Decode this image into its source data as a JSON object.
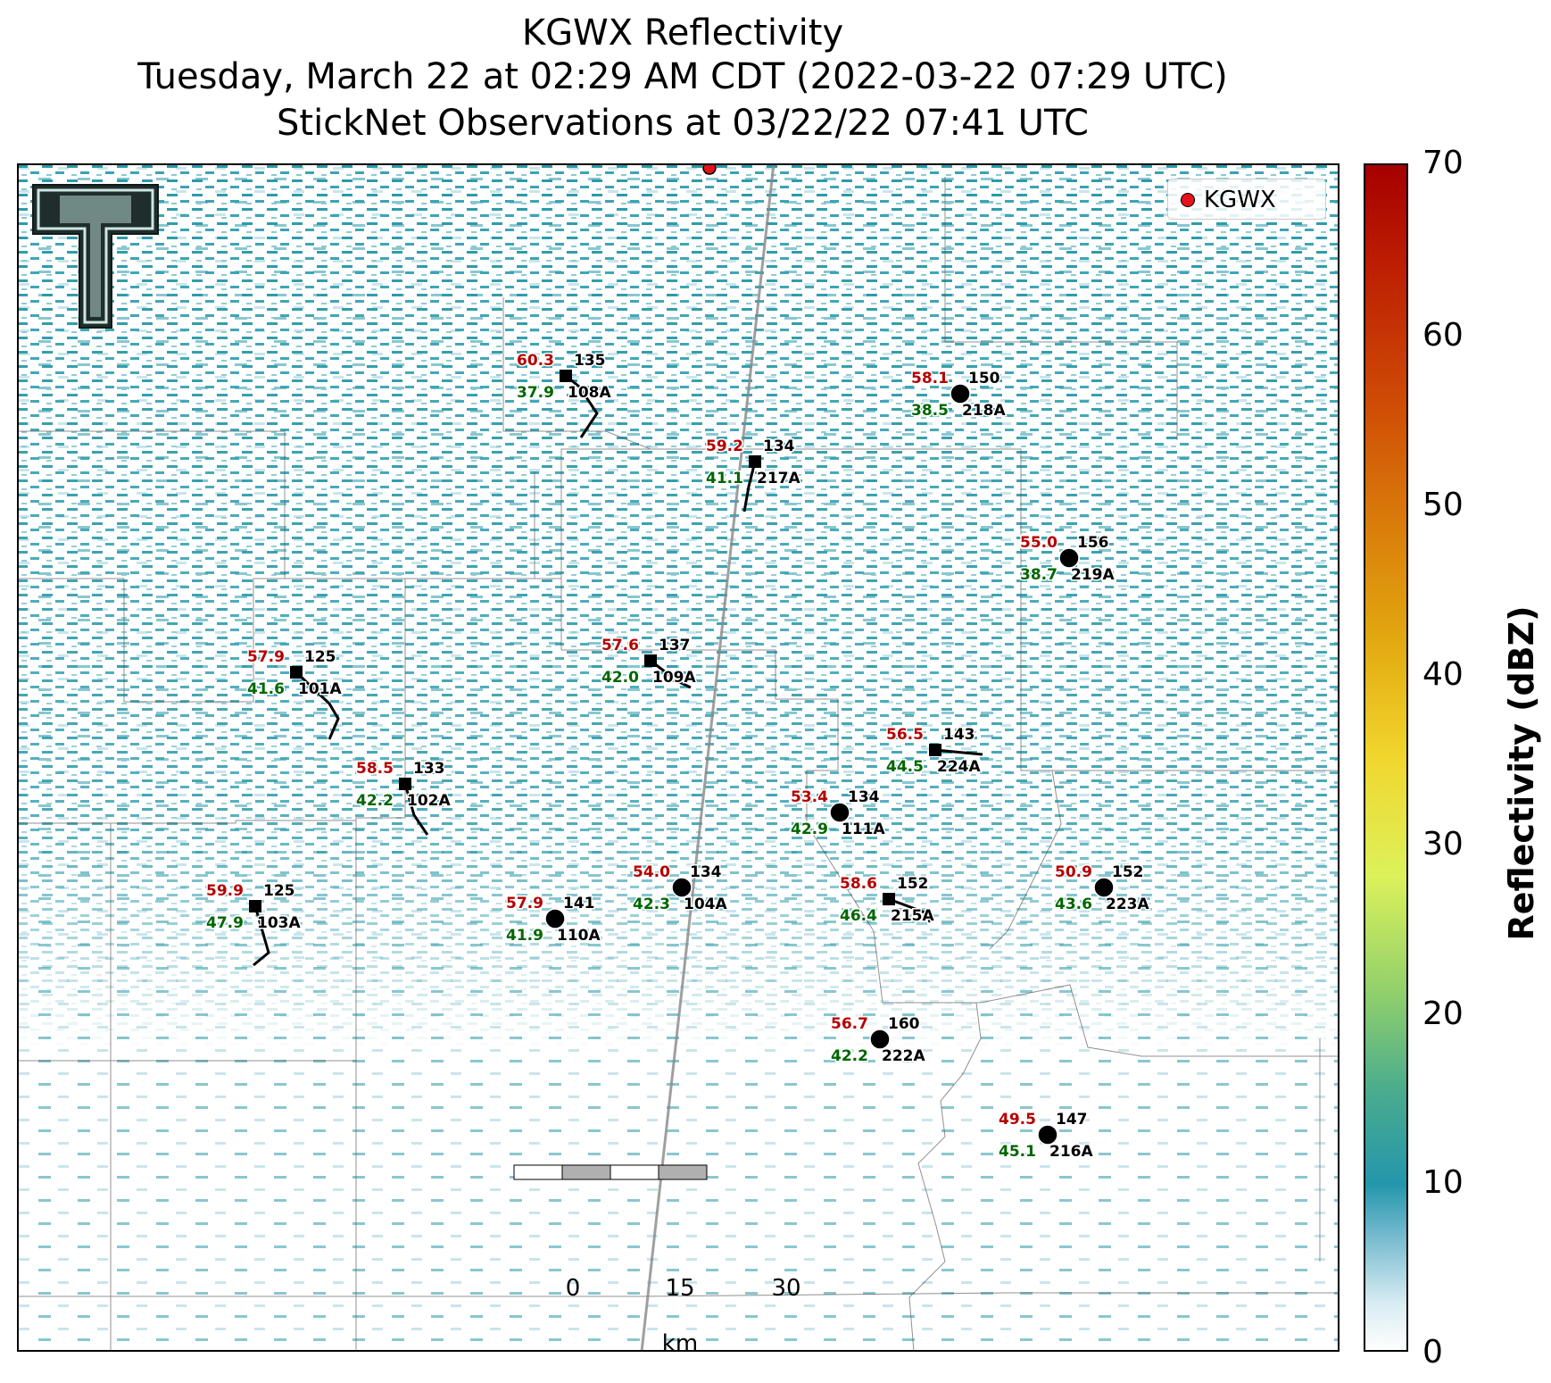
{
  "title": {
    "line1": "KGWX Reflectivity",
    "line2": "Tuesday, March 22 at 02:29 AM CDT (2022-03-22 07:29 UTC)",
    "line3": "StickNet Observations at 03/22/22 07:41 UTC"
  },
  "legend": {
    "label": "KGWX",
    "marker_color": "#e4141c"
  },
  "colorbar": {
    "label": "Reflectivity (dBZ)",
    "ticks": [
      "0",
      "10",
      "20",
      "30",
      "40",
      "50",
      "60",
      "70"
    ]
  },
  "scalebar": {
    "ticks": [
      "0",
      "15",
      "30"
    ],
    "unit": "km"
  },
  "stations": [
    {
      "id": "108A",
      "temp": "60.3",
      "dew": "37.9",
      "value": "135",
      "marker": "square"
    },
    {
      "id": "217A",
      "temp": "59.2",
      "dew": "41.1",
      "value": "134",
      "marker": "square"
    },
    {
      "id": "218A",
      "temp": "58.1",
      "dew": "38.5",
      "value": "150",
      "marker": "circle"
    },
    {
      "id": "219A",
      "temp": "55.0",
      "dew": "38.7",
      "value": "156",
      "marker": "circle"
    },
    {
      "id": "101A",
      "temp": "57.9",
      "dew": "41.6",
      "value": "125",
      "marker": "square"
    },
    {
      "id": "109A",
      "temp": "57.6",
      "dew": "42.0",
      "value": "137",
      "marker": "square"
    },
    {
      "id": "224A",
      "temp": "56.5",
      "dew": "44.5",
      "value": "143",
      "marker": "square"
    },
    {
      "id": "102A",
      "temp": "58.5",
      "dew": "42.2",
      "value": "133",
      "marker": "square"
    },
    {
      "id": "111A",
      "temp": "53.4",
      "dew": "42.9",
      "value": "134",
      "marker": "circle"
    },
    {
      "id": "103A",
      "temp": "59.9",
      "dew": "47.9",
      "value": "125",
      "marker": "square"
    },
    {
      "id": "110A",
      "temp": "57.9",
      "dew": "41.9",
      "value": "141",
      "marker": "circle"
    },
    {
      "id": "104A",
      "temp": "54.0",
      "dew": "42.3",
      "value": "134",
      "marker": "circle"
    },
    {
      "id": "215A",
      "temp": "58.6",
      "dew": "46.4",
      "value": "152",
      "marker": "square"
    },
    {
      "id": "223A",
      "temp": "50.9",
      "dew": "43.6",
      "value": "152",
      "marker": "circle"
    },
    {
      "id": "222A",
      "temp": "56.7",
      "dew": "42.2",
      "value": "160",
      "marker": "circle"
    },
    {
      "id": "216A",
      "temp": "49.5",
      "dew": "45.1",
      "value": "147",
      "marker": "circle"
    }
  ],
  "colors": {
    "temp": "#b50000",
    "dew": "#006600",
    "radar_teal": "#2b9aa8"
  }
}
